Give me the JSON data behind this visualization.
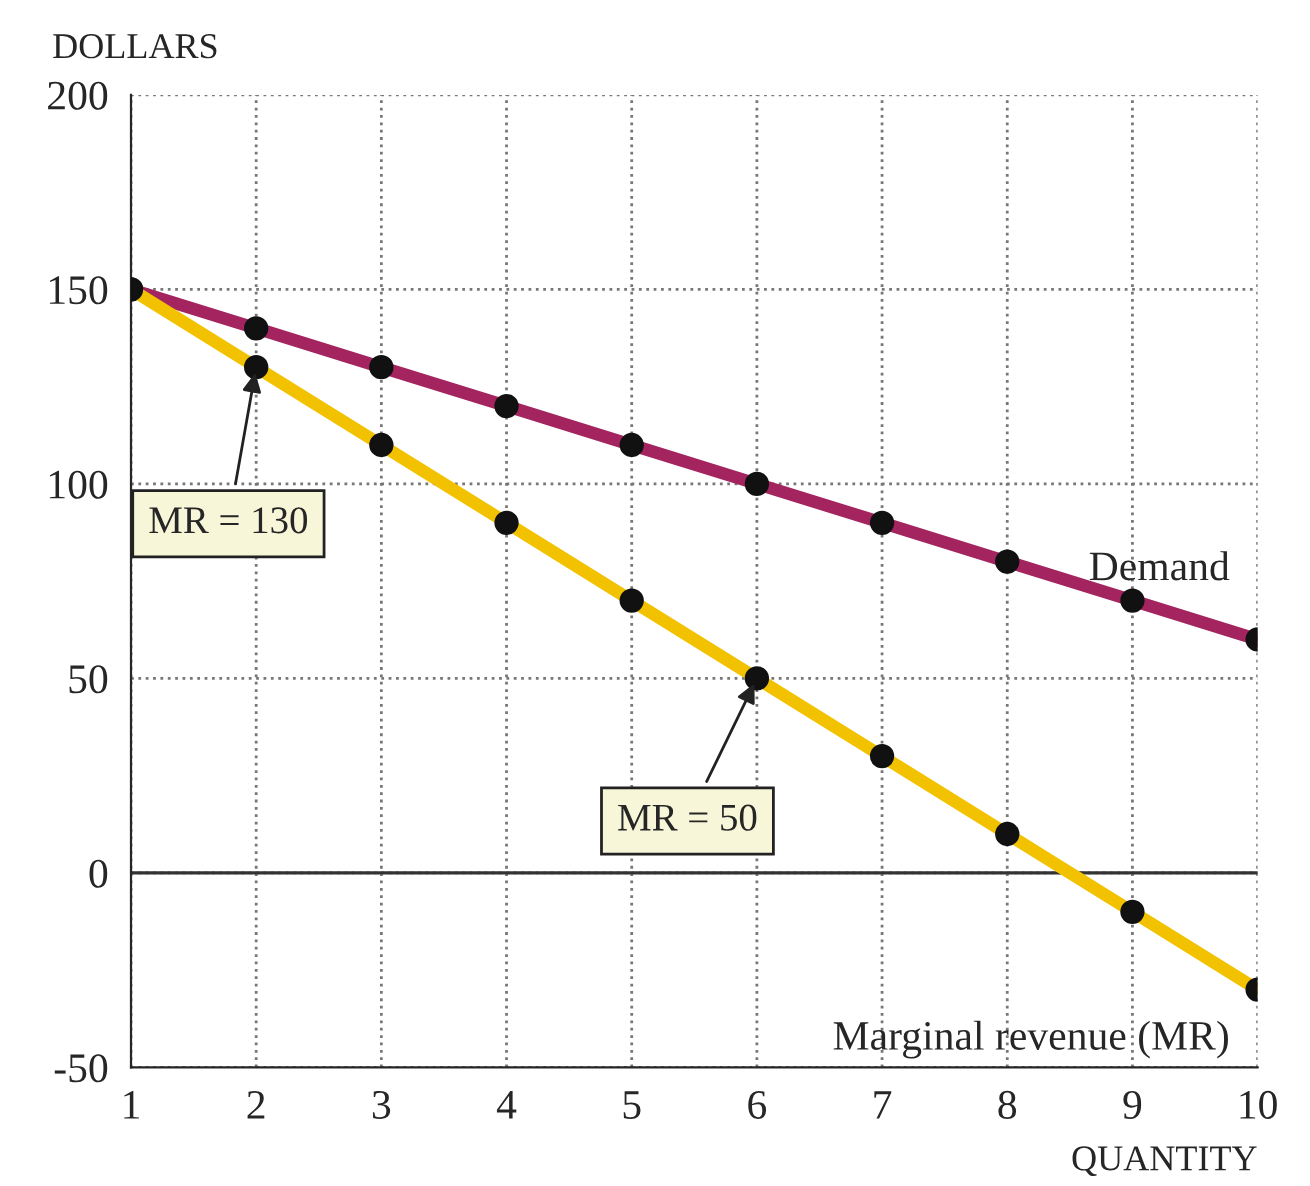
{
  "chart_data": {
    "type": "line",
    "xlabel": "QUANTITY",
    "ylabel": "DOLLARS",
    "x": [
      1,
      2,
      3,
      4,
      5,
      6,
      7,
      8,
      9,
      10
    ],
    "series": [
      {
        "name": "Demand",
        "color": "#a3245f",
        "values": [
          150,
          140,
          130,
          120,
          110,
          100,
          90,
          80,
          70,
          60
        ]
      },
      {
        "name": "Marginal revenue (MR)",
        "color": "#f2c200",
        "values": [
          150,
          130,
          110,
          90,
          70,
          50,
          30,
          10,
          -10,
          -30
        ]
      }
    ],
    "xlim": [
      1,
      10
    ],
    "ylim": [
      -50,
      200
    ],
    "xticks": [
      1,
      2,
      3,
      4,
      5,
      6,
      7,
      8,
      9,
      10
    ],
    "yticks": [
      -50,
      0,
      50,
      100,
      150,
      200
    ],
    "ref_lines": [
      {
        "axis": "y",
        "value": 0,
        "color": "#333333"
      }
    ],
    "annotations": [
      {
        "text": "MR = 130",
        "x": 2,
        "y": 130
      },
      {
        "text": "MR = 50",
        "x": 6,
        "y": 50
      }
    ],
    "grid": true,
    "marker": "circle",
    "line_style": "solid"
  }
}
